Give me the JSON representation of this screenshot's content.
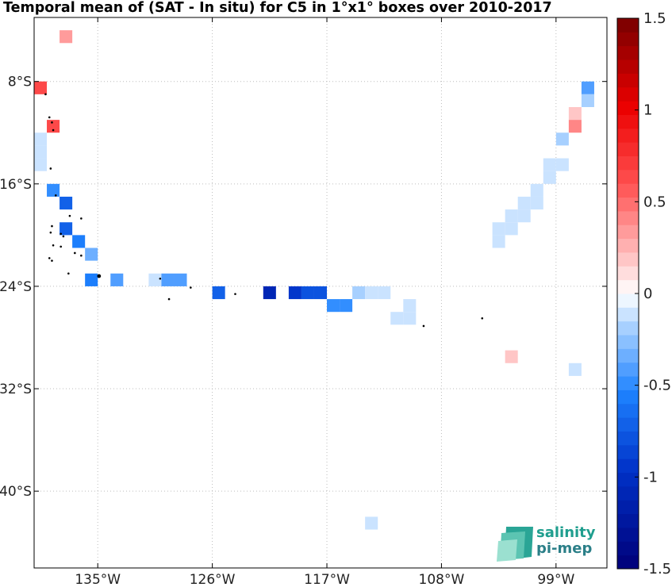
{
  "title": "Temporal mean of (SAT - In situ) for C5 in 1°x1° boxes over 2010-2017",
  "logo": {
    "line1": "salinity",
    "line2": "pi-mep"
  },
  "chart_data": {
    "type": "heatmap",
    "title": "Temporal mean of (SAT - In situ) for C5 in 1°x1° boxes over 2010-2017",
    "xlim": [
      -140,
      -95
    ],
    "ylim": [
      -46,
      -3
    ],
    "x_ticks": [
      -135,
      -126,
      -117,
      -108,
      -99
    ],
    "x_tick_labels": [
      "135°W",
      "126°W",
      "117°W",
      "108°W",
      "99°W"
    ],
    "y_ticks": [
      -8,
      -16,
      -24,
      -32,
      -40
    ],
    "y_tick_labels": [
      "8°S",
      "16°S",
      "24°S",
      "32°S",
      "40°S"
    ],
    "grid": true,
    "colorbar": {
      "range": [
        -1.5,
        1.5
      ],
      "levels": 40,
      "tick_values": [
        1.5,
        1,
        0.5,
        0,
        -0.5,
        -1,
        -1.5
      ],
      "tick_labels": [
        "1.5",
        "1",
        "0.5",
        "0",
        "-0.5",
        "-1",
        "-1.5"
      ]
    },
    "cells": [
      {
        "lon": -137.5,
        "lat": -4.5,
        "value": 0.3
      },
      {
        "lon": -139.5,
        "lat": -8.5,
        "value": 0.6
      },
      {
        "lon": -138.5,
        "lat": -11.5,
        "value": 0.6
      },
      {
        "lon": -139.5,
        "lat": -12.5,
        "value": -0.1
      },
      {
        "lon": -139.5,
        "lat": -13.5,
        "value": -0.1
      },
      {
        "lon": -139.5,
        "lat": -14.5,
        "value": -0.1
      },
      {
        "lon": -138.5,
        "lat": -16.5,
        "value": -0.5
      },
      {
        "lon": -137.5,
        "lat": -17.5,
        "value": -0.7
      },
      {
        "lon": -137.5,
        "lat": -19.5,
        "value": -0.7
      },
      {
        "lon": -136.5,
        "lat": -20.5,
        "value": -0.6
      },
      {
        "lon": -135.5,
        "lat": -21.5,
        "value": -0.3
      },
      {
        "lon": -135.5,
        "lat": -23.5,
        "value": -0.6
      },
      {
        "lon": -133.5,
        "lat": -23.5,
        "value": -0.4
      },
      {
        "lon": -130.5,
        "lat": -23.5,
        "value": -0.1
      },
      {
        "lon": -129.5,
        "lat": -23.5,
        "value": -0.4
      },
      {
        "lon": -128.5,
        "lat": -23.5,
        "value": -0.4
      },
      {
        "lon": -125.5,
        "lat": -24.5,
        "value": -0.7
      },
      {
        "lon": -121.5,
        "lat": -24.5,
        "value": -1.1
      },
      {
        "lon": -119.5,
        "lat": -24.5,
        "value": -0.9
      },
      {
        "lon": -118.5,
        "lat": -24.5,
        "value": -0.8
      },
      {
        "lon": -117.5,
        "lat": -24.5,
        "value": -0.8
      },
      {
        "lon": -116.5,
        "lat": -25.5,
        "value": -0.5
      },
      {
        "lon": -115.5,
        "lat": -25.5,
        "value": -0.5
      },
      {
        "lon": -114.5,
        "lat": -24.5,
        "value": -0.2
      },
      {
        "lon": -113.5,
        "lat": -24.5,
        "value": -0.1
      },
      {
        "lon": -112.5,
        "lat": -24.5,
        "value": -0.1
      },
      {
        "lon": -110.5,
        "lat": -25.5,
        "value": -0.1
      },
      {
        "lon": -111.5,
        "lat": -26.5,
        "value": -0.1
      },
      {
        "lon": -110.5,
        "lat": -26.5,
        "value": -0.1
      },
      {
        "lon": -96.5,
        "lat": -8.5,
        "value": -0.4
      },
      {
        "lon": -96.5,
        "lat": -9.5,
        "value": -0.2
      },
      {
        "lon": -97.5,
        "lat": -10.5,
        "value": 0.2
      },
      {
        "lon": -97.5,
        "lat": -11.5,
        "value": 0.4
      },
      {
        "lon": -98.5,
        "lat": -12.5,
        "value": -0.2
      },
      {
        "lon": -98.5,
        "lat": -14.5,
        "value": -0.1
      },
      {
        "lon": -99.5,
        "lat": -14.5,
        "value": -0.1
      },
      {
        "lon": -99.5,
        "lat": -15.5,
        "value": -0.1
      },
      {
        "lon": -100.5,
        "lat": -16.5,
        "value": -0.1
      },
      {
        "lon": -100.5,
        "lat": -17.5,
        "value": -0.1
      },
      {
        "lon": -101.5,
        "lat": -17.5,
        "value": -0.1
      },
      {
        "lon": -101.5,
        "lat": -18.5,
        "value": -0.1
      },
      {
        "lon": -102.5,
        "lat": -18.5,
        "value": -0.1
      },
      {
        "lon": -102.5,
        "lat": -19.5,
        "value": -0.1
      },
      {
        "lon": -103.5,
        "lat": -19.5,
        "value": -0.1
      },
      {
        "lon": -103.5,
        "lat": -20.5,
        "value": -0.1
      },
      {
        "lon": -102.5,
        "lat": -29.5,
        "value": 0.2
      },
      {
        "lon": -97.5,
        "lat": -30.5,
        "value": -0.1
      },
      {
        "lon": -113.5,
        "lat": -42.5,
        "value": -0.1
      }
    ]
  }
}
